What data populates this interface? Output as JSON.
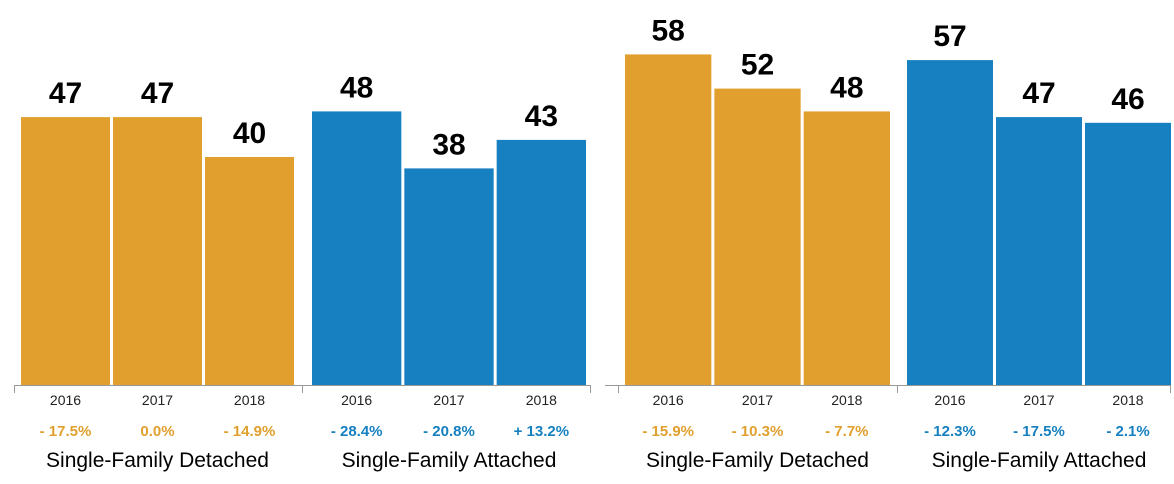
{
  "colors": {
    "detached": "#E19F2E",
    "attached": "#1680C0",
    "axis": "#999999",
    "text": "#000000",
    "tick": "#222222"
  },
  "chart_data": [
    {
      "type": "bar",
      "title": "",
      "categories": [
        "2016",
        "2017",
        "2018"
      ],
      "ylim": [
        0,
        60
      ],
      "groups": [
        {
          "name": "Single-Family Detached",
          "color": "detached",
          "values": [
            47,
            47,
            40
          ],
          "changes": [
            "- 17.5%",
            "0.0%",
            "- 14.9%"
          ]
        },
        {
          "name": "Single-Family Attached",
          "color": "attached",
          "values": [
            48,
            38,
            43
          ],
          "changes": [
            "- 28.4%",
            "- 20.8%",
            "+ 13.2%"
          ]
        }
      ]
    },
    {
      "type": "bar",
      "title": "",
      "categories": [
        "2016",
        "2017",
        "2018"
      ],
      "ylim": [
        0,
        60
      ],
      "groups": [
        {
          "name": "Single-Family Detached",
          "color": "detached",
          "values": [
            58,
            52,
            48
          ],
          "changes": [
            "- 15.9%",
            "- 10.3%",
            "- 7.7%"
          ]
        },
        {
          "name": "Single-Family Attached",
          "color": "attached",
          "values": [
            57,
            47,
            46
          ],
          "changes": [
            "- 12.3%",
            "- 17.5%",
            "- 2.1%"
          ]
        }
      ]
    }
  ]
}
